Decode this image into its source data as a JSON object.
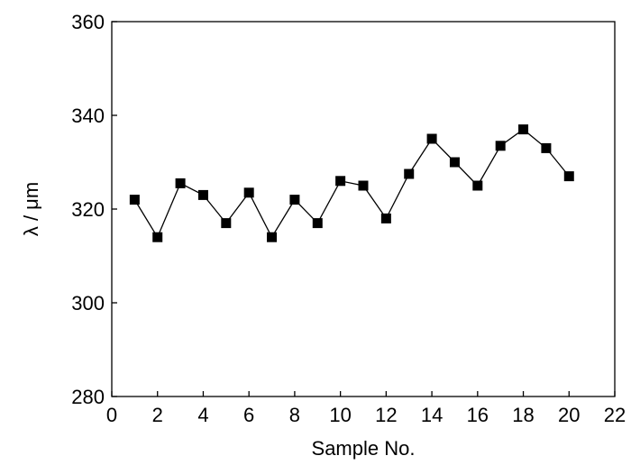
{
  "chart_data": {
    "type": "line",
    "title": "",
    "xlabel": "Sample No.",
    "ylabel": "λ / μm",
    "xlim": [
      0,
      22
    ],
    "ylim": [
      280,
      360
    ],
    "xticks": [
      0,
      2,
      4,
      6,
      8,
      10,
      12,
      14,
      16,
      18,
      20,
      22
    ],
    "yticks": [
      280,
      300,
      320,
      340,
      360
    ],
    "grid": false,
    "marker": "square",
    "colors": {
      "line": "#000000",
      "marker": "#000000",
      "axis": "#000000"
    },
    "series": [
      {
        "x": [
          1,
          2,
          3,
          4,
          5,
          6,
          7,
          8,
          9,
          10,
          11,
          12,
          13,
          14,
          15,
          16,
          17,
          18,
          19,
          20
        ],
        "y": [
          322,
          314,
          325.5,
          323,
          317,
          323.5,
          314,
          322,
          317,
          326,
          325,
          318,
          327.5,
          335,
          330,
          325,
          333.5,
          337,
          333,
          327
        ]
      }
    ]
  }
}
